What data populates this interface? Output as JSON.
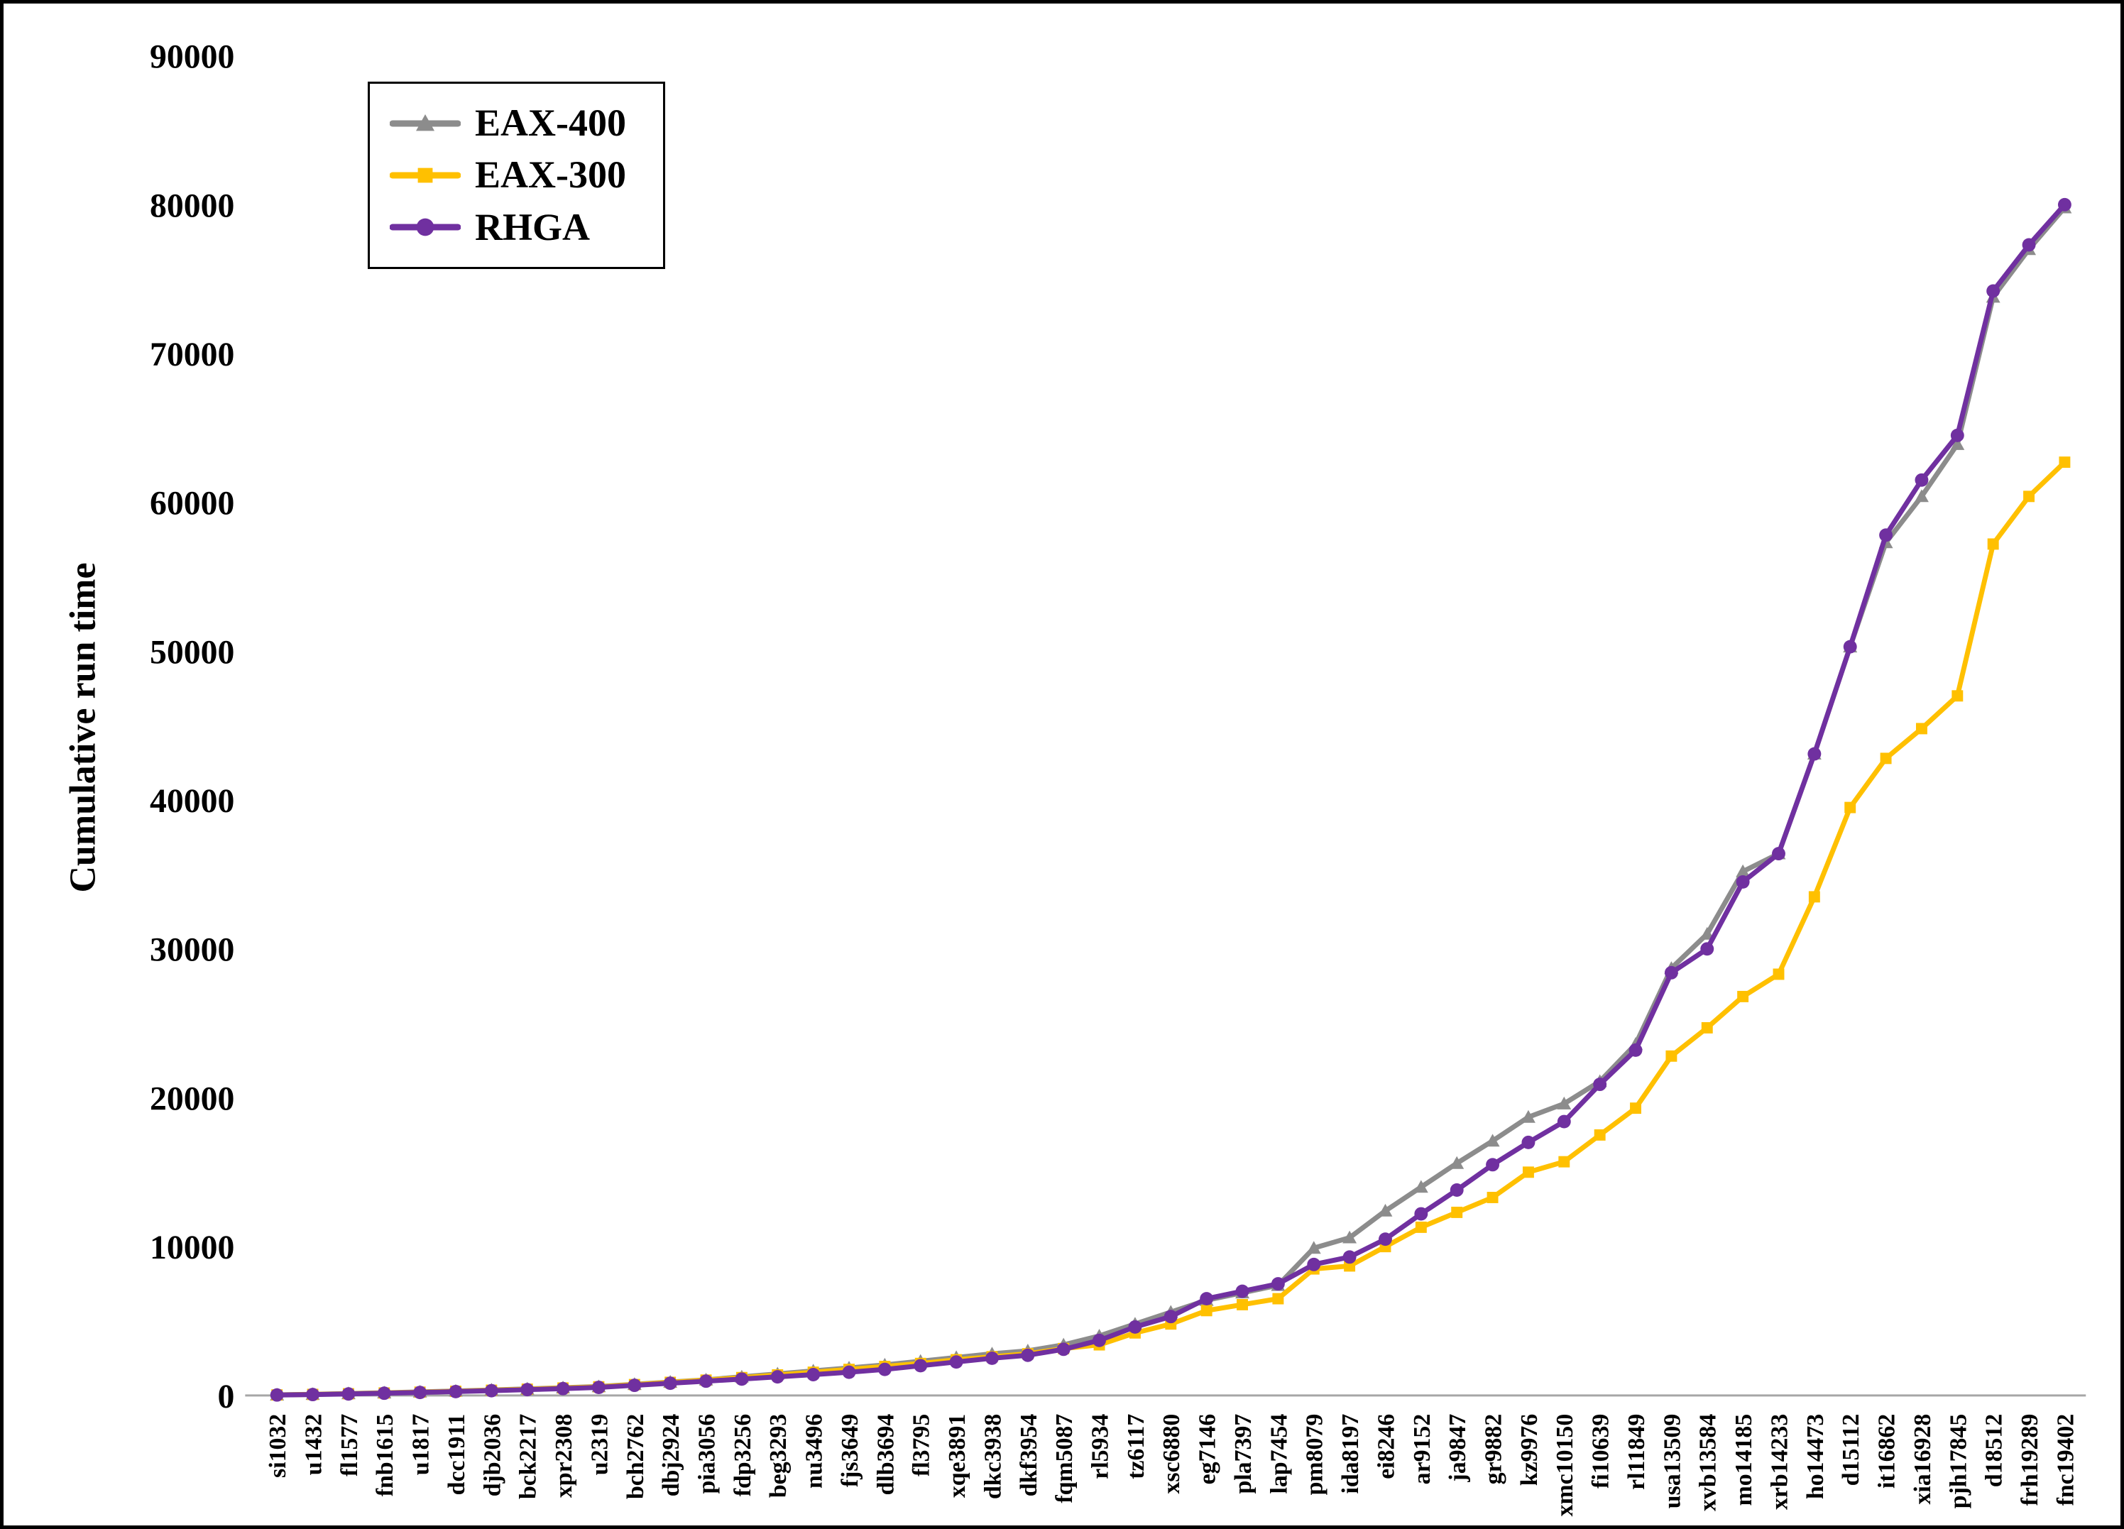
{
  "chart_data": {
    "type": "line",
    "title": "",
    "xlabel": "",
    "ylabel": "Cumulative run time",
    "ylim": [
      0,
      90000
    ],
    "yticks": [
      0,
      10000,
      20000,
      30000,
      40000,
      50000,
      60000,
      70000,
      80000,
      90000
    ],
    "grid": false,
    "legend_position": "top-left",
    "categories": [
      "si1032",
      "u1432",
      "fl1577",
      "fnb1615",
      "u1817",
      "dcc1911",
      "djb2036",
      "bck2217",
      "xpr2308",
      "u2319",
      "bch2762",
      "dbj2924",
      "pia3056",
      "fdp3256",
      "beg3293",
      "nu3496",
      "fjs3649",
      "dlb3694",
      "fl3795",
      "xqe3891",
      "dkc3938",
      "dkf3954",
      "fqm5087",
      "rl5934",
      "tz6117",
      "xsc6880",
      "eg7146",
      "pla7397",
      "lap7454",
      "pm8079",
      "ida8197",
      "ei8246",
      "ar9152",
      "ja9847",
      "gr9882",
      "kz9976",
      "xmc10150",
      "fi10639",
      "rl11849",
      "usa13509",
      "xvb13584",
      "mo14185",
      "xrb14233",
      "ho14473",
      "d15112",
      "it16862",
      "xia16928",
      "pjh17845",
      "d18512",
      "frh19289",
      "fnc19402"
    ],
    "series": [
      {
        "name": "EAX-400",
        "color": "#8C8C8C",
        "marker": "triangle",
        "values": [
          40,
          80,
          130,
          180,
          240,
          300,
          370,
          440,
          520,
          600,
          750,
          900,
          1050,
          1250,
          1450,
          1650,
          1850,
          2050,
          2300,
          2550,
          2800,
          3000,
          3400,
          4000,
          4800,
          5600,
          6400,
          6900,
          7400,
          9900,
          10600,
          12400,
          14000,
          15600,
          17100,
          18700,
          19600,
          21100,
          23600,
          28700,
          31000,
          35200,
          36400,
          43100,
          50300,
          57300,
          60400,
          63900,
          73800,
          77000,
          79800
        ]
      },
      {
        "name": "EAX-300",
        "color": "#FFC000",
        "marker": "square",
        "values": [
          35,
          70,
          115,
          165,
          220,
          280,
          350,
          420,
          500,
          580,
          730,
          880,
          1030,
          1200,
          1380,
          1560,
          1750,
          1950,
          2150,
          2400,
          2600,
          2800,
          3150,
          3400,
          4200,
          4800,
          5700,
          6100,
          6500,
          8500,
          8700,
          10000,
          11300,
          12300,
          13300,
          15000,
          15700,
          17500,
          19300,
          22800,
          24700,
          26800,
          28300,
          33500,
          39500,
          42800,
          44800,
          47000,
          57200,
          60400,
          62700
        ]
      },
      {
        "name": "RHGA",
        "color": "#7030A0",
        "marker": "circle",
        "values": [
          30,
          60,
          100,
          150,
          200,
          260,
          320,
          390,
          460,
          540,
          680,
          820,
          960,
          1100,
          1250,
          1400,
          1560,
          1750,
          2000,
          2250,
          2500,
          2700,
          3100,
          3700,
          4600,
          5300,
          6500,
          7000,
          7500,
          8800,
          9300,
          10500,
          12200,
          13800,
          15500,
          17000,
          18400,
          20900,
          23200,
          28400,
          30000,
          34500,
          36400,
          43100,
          50300,
          57800,
          61500,
          64500,
          74200,
          77300,
          80000
        ]
      }
    ],
    "axis_color": "#A6A6A6"
  }
}
